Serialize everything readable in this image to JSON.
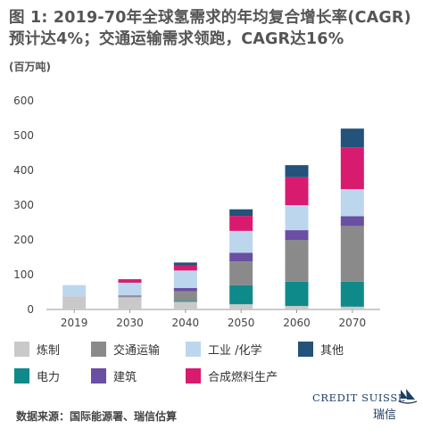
{
  "title": "图 1: 2019-70年全球氢需求的年均复合增长率(CAGR)预计达4%；交通运输需求领跑，CAGR达16%",
  "unit_label": "(百万吨)",
  "source": "数据来源：国际能源署、瑞信估算",
  "logo": {
    "name": "CREDIT SUISSE",
    "cn": "瑞信"
  },
  "chart_data": {
    "type": "bar",
    "stacked": true,
    "categories": [
      "2019",
      "2030",
      "2040",
      "2050",
      "2060",
      "2070"
    ],
    "ylim": [
      0,
      600
    ],
    "yticks": [
      0,
      100,
      200,
      300,
      400,
      500,
      600
    ],
    "grid": false,
    "legend_position": "bottom",
    "series": [
      {
        "name": "炼制",
        "color": "#c9c9c9",
        "values": [
          38,
          35,
          22,
          15,
          10,
          8
        ]
      },
      {
        "name": "电力",
        "color": "#0f8a8a",
        "values": [
          0,
          0,
          3,
          55,
          70,
          72
        ]
      },
      {
        "name": "交通运输",
        "color": "#8a8a8a",
        "values": [
          0,
          3,
          27,
          68,
          120,
          160
        ]
      },
      {
        "name": "建筑",
        "color": "#6a4fa3",
        "values": [
          0,
          2,
          10,
          25,
          28,
          28
        ]
      },
      {
        "name": "工业 /化学",
        "color": "#bcd6ee",
        "values": [
          32,
          37,
          50,
          63,
          72,
          78
        ]
      },
      {
        "name": "合成燃料生产",
        "color": "#d81b6e",
        "values": [
          0,
          8,
          15,
          43,
          80,
          120
        ]
      },
      {
        "name": "其他",
        "color": "#23527a",
        "values": [
          0,
          2,
          8,
          19,
          35,
          54
        ]
      }
    ]
  },
  "legend": [
    {
      "label": "炼制",
      "color": "#c9c9c9"
    },
    {
      "label": "交通运输",
      "color": "#8a8a8a"
    },
    {
      "label": "工业 /化学",
      "color": "#bcd6ee"
    },
    {
      "label": "其他",
      "color": "#23527a"
    },
    {
      "label": "电力",
      "color": "#0f8a8a"
    },
    {
      "label": "建筑",
      "color": "#6a4fa3"
    },
    {
      "label": "合成燃料生产",
      "color": "#d81b6e"
    }
  ]
}
